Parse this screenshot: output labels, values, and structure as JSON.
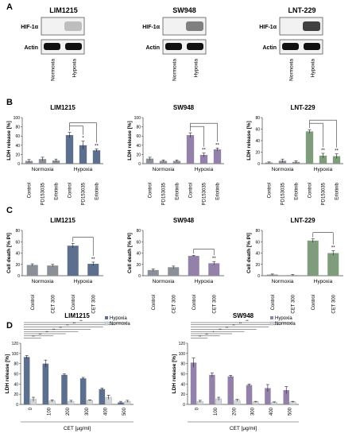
{
  "panel_labels": [
    "A",
    "B",
    "C",
    "D"
  ],
  "blots": [
    {
      "name": "LIM1215",
      "rows": [
        "HIF-1α",
        "Actin"
      ],
      "lanes": [
        "Normoxia",
        "Hypoxia"
      ]
    },
    {
      "name": "SW948",
      "rows": [
        "HIF-1α",
        "Actin"
      ],
      "lanes": [
        "Normoxia",
        "Hypoxia"
      ]
    },
    {
      "name": "LNT-229",
      "rows": [
        "HIF-1α",
        "Actin"
      ],
      "lanes": [
        "Normoxia",
        "Hypoxia"
      ]
    }
  ],
  "colors": {
    "LIM1215": "#5d6f8e",
    "SW948": "#9481a9",
    "LNT-229": "#7f9d7c",
    "normoxia_bar": "#8a8f98",
    "normoxia_light": "#d4d8dc"
  },
  "chart_data": [
    {
      "panel": "B",
      "type": "bar",
      "title": "LIM1215",
      "ylabel": "LDH release [%]",
      "ylim": [
        0,
        100
      ],
      "yticks": [
        0,
        20,
        40,
        60,
        80,
        100
      ],
      "categories": [
        "Control",
        "PD153035",
        "Erlotinib",
        "Control",
        "PD153035",
        "Erlotinib"
      ],
      "groups": [
        "Normoxia",
        "Hypoxia"
      ],
      "values": [
        6,
        10,
        7,
        62,
        40,
        29
      ],
      "errors": [
        3,
        4,
        3,
        6,
        9,
        3
      ],
      "annotations": [
        "",
        "",
        "",
        "",
        "*",
        "**"
      ]
    },
    {
      "panel": "B",
      "type": "bar",
      "title": "SW948",
      "ylabel": "LDH release [%]",
      "ylim": [
        0,
        100
      ],
      "yticks": [
        0,
        20,
        40,
        60,
        80,
        100
      ],
      "categories": [
        "Control",
        "PD153035",
        "Erlotinib",
        "Control",
        "PD153035",
        "Erlotinib"
      ],
      "groups": [
        "Normoxia",
        "Hypoxia"
      ],
      "values": [
        11,
        6,
        6,
        62,
        19,
        31
      ],
      "errors": [
        3,
        2,
        2,
        5,
        4,
        3
      ],
      "annotations": [
        "",
        "",
        "",
        "",
        "**",
        "**"
      ]
    },
    {
      "panel": "B",
      "type": "bar",
      "title": "LNT-229",
      "ylabel": "LDH release [%]",
      "ylim": [
        0,
        80
      ],
      "yticks": [
        0,
        20,
        40,
        60,
        80
      ],
      "categories": [
        "Control",
        "PD153035",
        "Erlotinib",
        "Control",
        "PD153035",
        "Erlotinib"
      ],
      "groups": [
        "Normoxia",
        "Hypoxia"
      ],
      "values": [
        2,
        5,
        3,
        56,
        14,
        13
      ],
      "errors": [
        1,
        3,
        2,
        3,
        4,
        4
      ],
      "annotations": [
        "",
        "",
        "",
        "",
        "**",
        "**"
      ]
    },
    {
      "panel": "C",
      "type": "bar",
      "title": "LIM1215",
      "ylabel": "Cell death [% PI]",
      "ylim": [
        0,
        80
      ],
      "yticks": [
        0,
        20,
        40,
        60,
        80
      ],
      "categories": [
        "Control",
        "CET 300",
        "Control",
        "CET 300"
      ],
      "groups": [
        "Normoxia",
        "Hypoxia"
      ],
      "values": [
        19,
        18,
        53,
        21
      ],
      "errors": [
        2,
        2,
        4,
        3
      ],
      "annotations": [
        "",
        "",
        "",
        "**"
      ]
    },
    {
      "panel": "C",
      "type": "bar",
      "title": "SW948",
      "ylabel": "Cell death [% PI]",
      "ylim": [
        0,
        80
      ],
      "yticks": [
        0,
        20,
        40,
        60,
        80
      ],
      "categories": [
        "Control",
        "CET 300",
        "Control",
        "CET 300"
      ],
      "groups": [
        "Normoxia",
        "Hypoxia"
      ],
      "values": [
        10,
        15,
        35,
        22
      ],
      "errors": [
        2,
        2,
        1,
        3
      ],
      "annotations": [
        "",
        "",
        "",
        "**"
      ]
    },
    {
      "panel": "C",
      "type": "bar",
      "title": "LNT-229",
      "ylabel": "Cell death [% PI]",
      "ylim": [
        0,
        80
      ],
      "yticks": [
        0,
        20,
        40,
        60,
        80
      ],
      "categories": [
        "Control",
        "CET 300",
        "Control",
        "CET 300"
      ],
      "groups": [
        "Normoxia",
        "Hypoxia"
      ],
      "values": [
        2,
        1,
        62,
        40
      ],
      "errors": [
        1,
        1,
        3,
        4
      ],
      "annotations": [
        "",
        "",
        "",
        "**"
      ]
    },
    {
      "panel": "D",
      "type": "bar",
      "title": "LIM1215",
      "ylabel": "LDH release [%]",
      "xlabel": "CET [µg/ml]",
      "ylim": [
        0,
        120
      ],
      "yticks": [
        0,
        20,
        40,
        60,
        80,
        100,
        120
      ],
      "categories": [
        "0",
        "100",
        "200",
        "300",
        "400",
        "500"
      ],
      "legend": [
        "Hypoxia",
        "Normoxia"
      ],
      "series": [
        {
          "name": "Hypoxia",
          "values": [
            93,
            80,
            58,
            51,
            30,
            4
          ],
          "errors": [
            3,
            7,
            2,
            2,
            2,
            2
          ]
        },
        {
          "name": "Normoxia",
          "values": [
            10,
            7,
            6,
            8,
            14,
            6
          ],
          "errors": [
            4,
            2,
            2,
            1,
            4,
            2
          ]
        }
      ],
      "significance": [
        "**",
        "**",
        "**",
        "**",
        "**",
        "**",
        "**",
        "**"
      ]
    },
    {
      "panel": "D",
      "type": "bar",
      "title": "SW948",
      "ylabel": "LDH release [%]",
      "xlabel": "CET [µg/ml]",
      "ylim": [
        0,
        120
      ],
      "yticks": [
        0,
        20,
        40,
        60,
        80,
        100,
        120
      ],
      "categories": [
        "0",
        "100",
        "200",
        "300",
        "400",
        "500"
      ],
      "legend": [
        "Hypoxia",
        "Normoxia"
      ],
      "series": [
        {
          "name": "Hypoxia",
          "values": [
            82,
            58,
            55,
            38,
            32,
            28
          ],
          "errors": [
            9,
            4,
            2,
            2,
            7,
            7
          ]
        },
        {
          "name": "Normoxia",
          "values": [
            6,
            11,
            8,
            5,
            4,
            5
          ],
          "errors": [
            2,
            3,
            2,
            1,
            1,
            1
          ]
        }
      ],
      "significance": [
        "**",
        "**",
        "**",
        "**",
        "**",
        "*",
        "**",
        "**"
      ]
    }
  ]
}
